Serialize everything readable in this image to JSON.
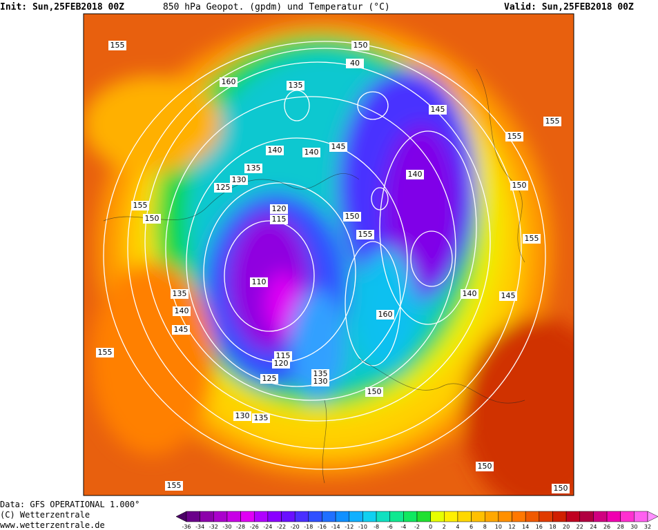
{
  "header": {
    "init": "Init: Sun,25FEB2018 00Z",
    "title": "850 hPa Geopot. (gpdm) und Temperatur (°C)",
    "valid": "Valid: Sun,25FEB2018 00Z"
  },
  "map": {
    "contour_labels": [
      155,
      150,
      40,
      135,
      160,
      145,
      155,
      155,
      140,
      140,
      145,
      135,
      140,
      130,
      125,
      150,
      155,
      120,
      115,
      150,
      150,
      155,
      155,
      110,
      135,
      140,
      145,
      140,
      160,
      145,
      155,
      115,
      120,
      125,
      135,
      130,
      150,
      130,
      135,
      150,
      155,
      150
    ]
  },
  "footer": {
    "lines": [
      "Data: GFS OPERATIONAL 1.000°",
      "(C) Wetterzentrale",
      "www.wetterzentrale.de"
    ]
  },
  "colorbar": {
    "labels": [
      -36,
      -34,
      -32,
      -30,
      -28,
      -26,
      -24,
      -22,
      -20,
      -18,
      -16,
      -14,
      -12,
      -10,
      -8,
      -6,
      -4,
      -2,
      0,
      2,
      4,
      6,
      8,
      10,
      12,
      14,
      16,
      18,
      20,
      22,
      24,
      26,
      28,
      30,
      32
    ],
    "colors": [
      "#4b0066",
      "#6a008a",
      "#8c00aa",
      "#aa00cc",
      "#c800e6",
      "#e000f5",
      "#b000ff",
      "#8a00ff",
      "#6a10ff",
      "#4a30ff",
      "#3050ff",
      "#2070ff",
      "#1090ff",
      "#10b0ff",
      "#10d0f0",
      "#10e0c0",
      "#10e890",
      "#10e860",
      "#20e030",
      "#e6ff00",
      "#fff000",
      "#ffd800",
      "#ffc000",
      "#ffa800",
      "#ff9000",
      "#ff7800",
      "#f05a00",
      "#e03c00",
      "#d02000",
      "#c00020",
      "#b00040",
      "#d00080",
      "#f000b0",
      "#ff30d0",
      "#ff60f0",
      "#ff90ff"
    ]
  }
}
